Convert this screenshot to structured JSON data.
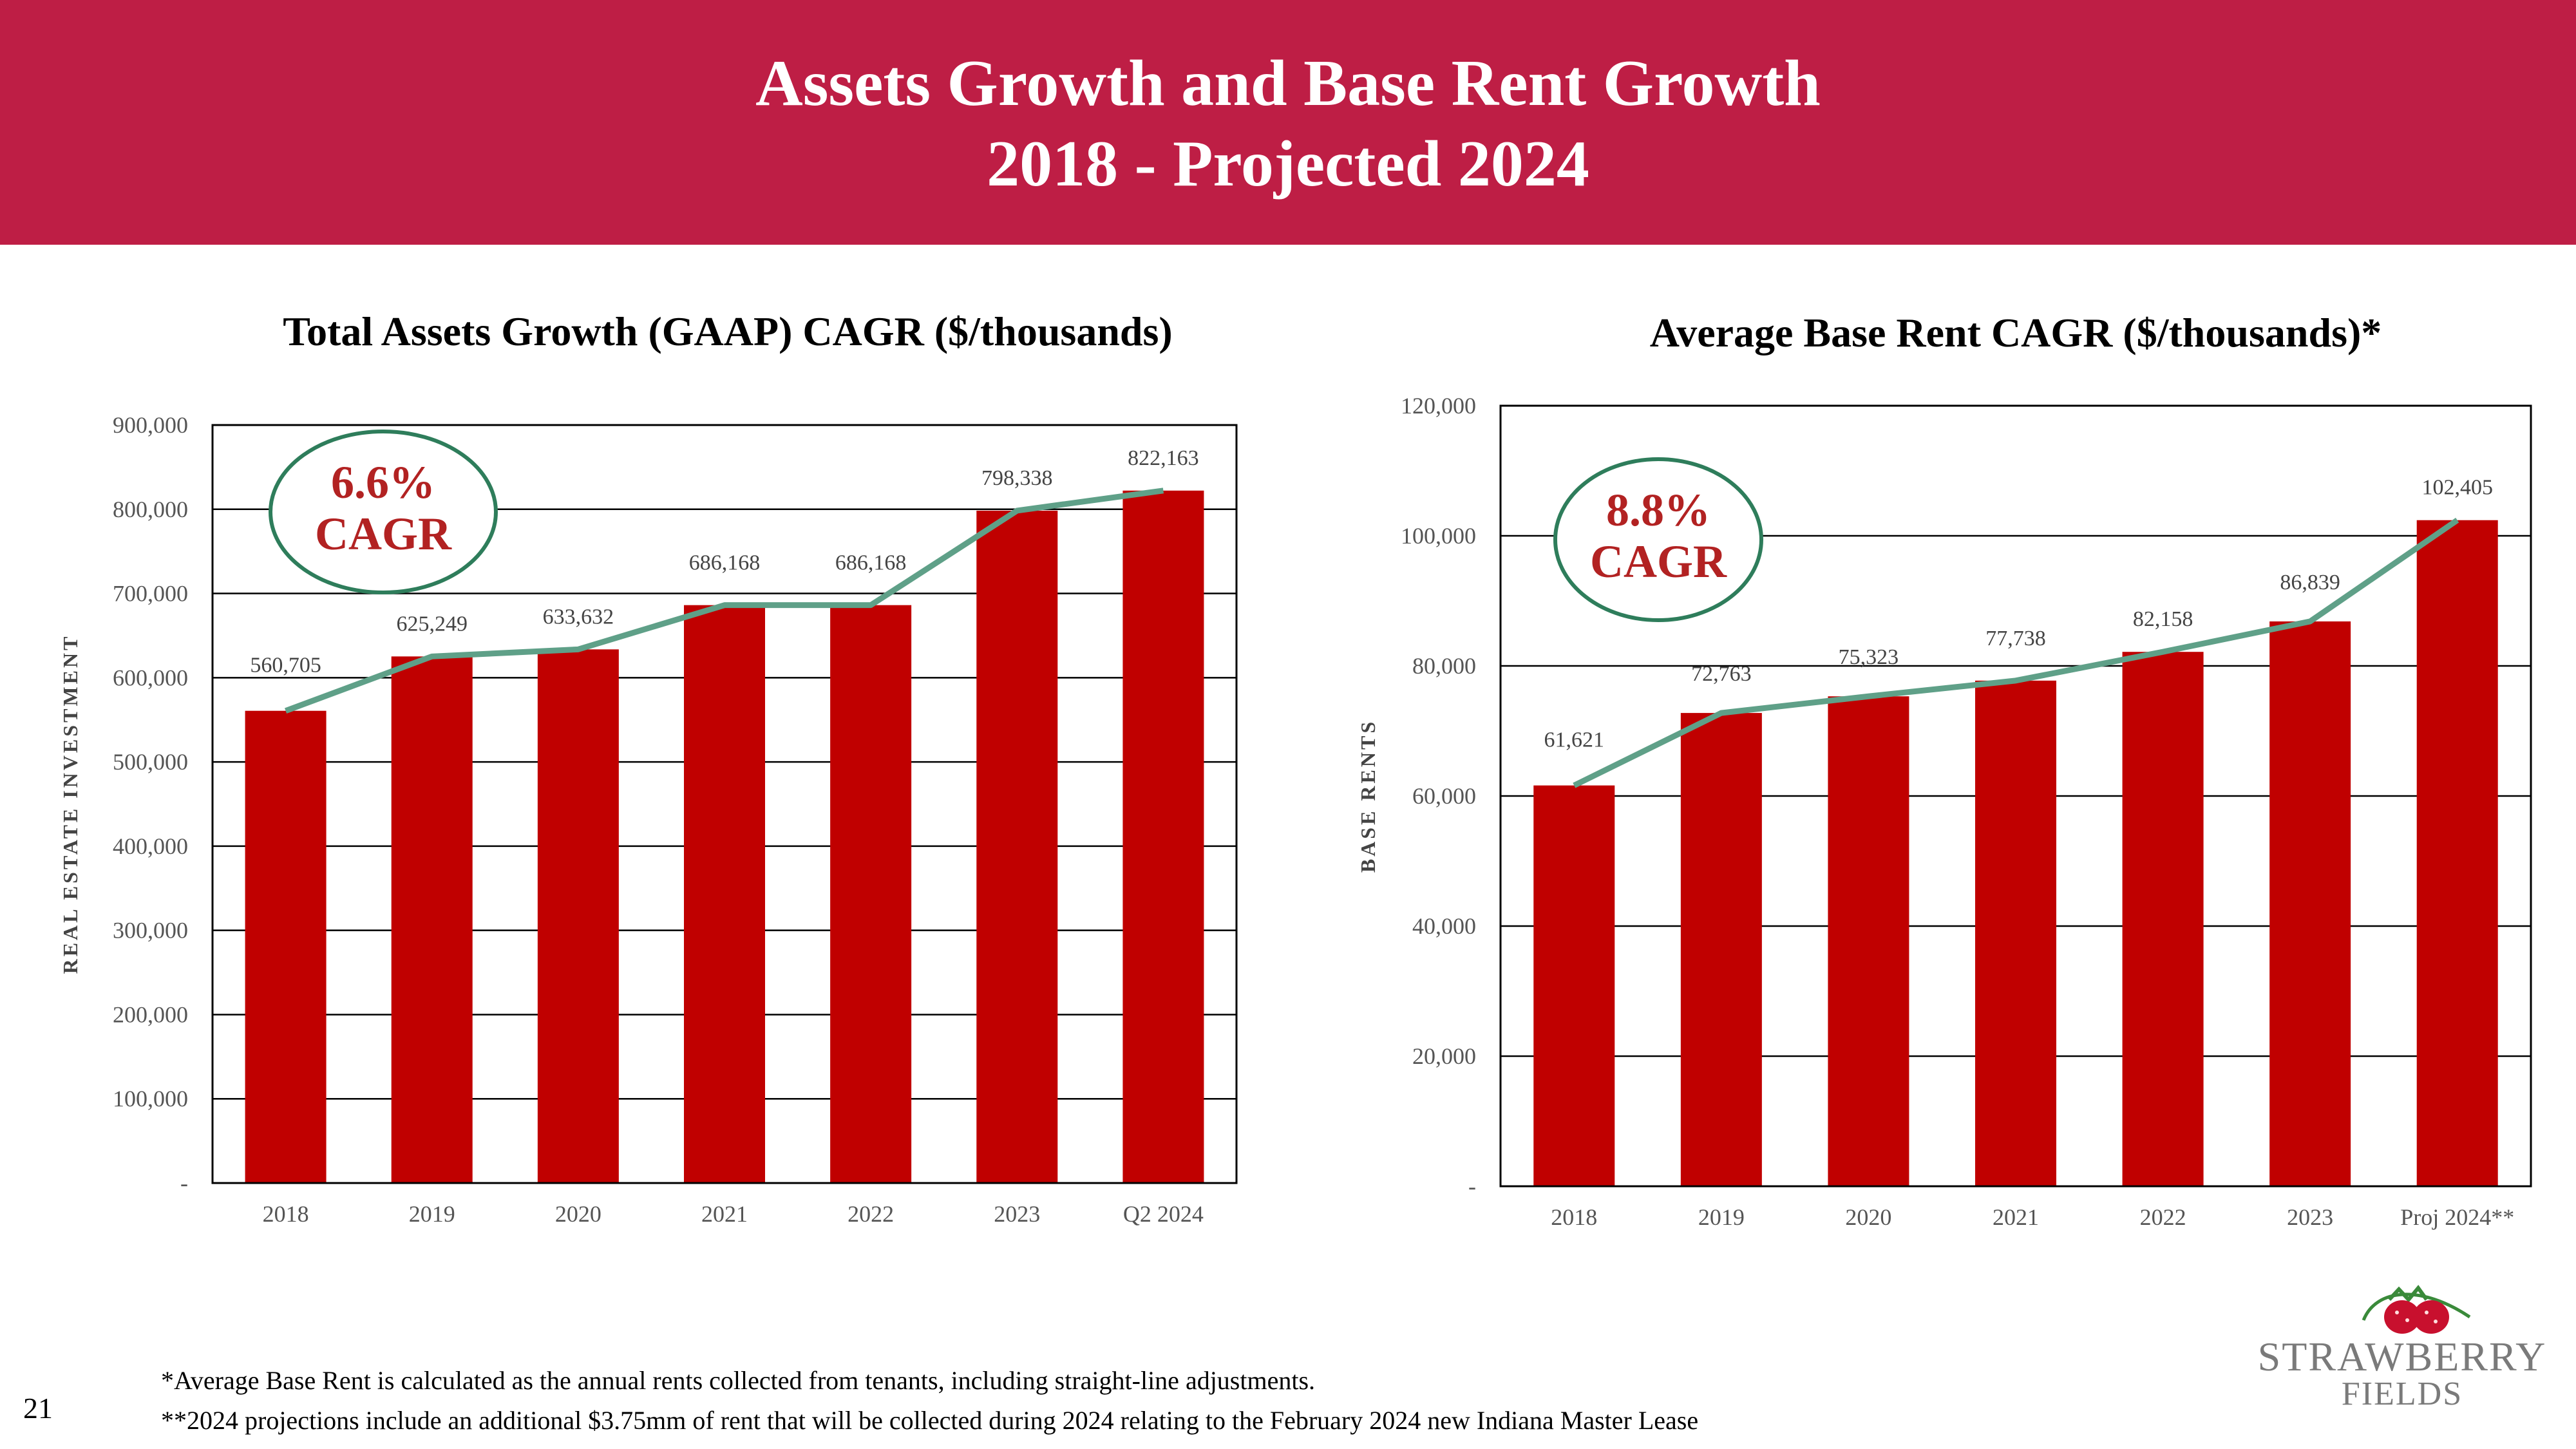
{
  "header": {
    "title_line1": "Assets Growth and Base Rent Growth",
    "title_line2": "2018 - Projected 2024"
  },
  "colors": {
    "banner": "#be1e45",
    "bar": "#c00000",
    "line": "#5fa088",
    "cagr_text": "#b22222",
    "cagr_ring": "#2e7d5b"
  },
  "chart_data": [
    {
      "type": "bar",
      "title": "Total Assets Growth (GAAP) CAGR ($/thousands)",
      "ylabel": "REAL ESTATE INVESTMENT",
      "xlabel": "",
      "categories": [
        "2018",
        "2019",
        "2020",
        "2021",
        "2022",
        "2023",
        "Q2 2024"
      ],
      "series": [
        {
          "name": "Total Assets (bar)",
          "values": [
            560705,
            625249,
            633632,
            686168,
            686168,
            798338,
            822163
          ]
        },
        {
          "name": "Trend (line)",
          "values": [
            560705,
            625249,
            633632,
            686168,
            686168,
            798338,
            822163
          ]
        }
      ],
      "data_labels": [
        "560,705",
        "625,249",
        "633,632",
        "686,168",
        "686,168",
        "798,338",
        "822,163"
      ],
      "ylim": [
        0,
        900000
      ],
      "yticks": [
        0,
        100000,
        200000,
        300000,
        400000,
        500000,
        600000,
        700000,
        800000,
        900000
      ],
      "ytick_labels": [
        "-",
        "100,000",
        "200,000",
        "300,000",
        "400,000",
        "500,000",
        "600,000",
        "700,000",
        "800,000",
        "900,000"
      ],
      "grid": true,
      "cagr": {
        "value": "6.6%",
        "label": "CAGR"
      }
    },
    {
      "type": "bar",
      "title": "Average Base Rent CAGR ($/thousands)*",
      "ylabel": "BASE RENTS",
      "xlabel": "",
      "categories": [
        "2018",
        "2019",
        "2020",
        "2021",
        "2022",
        "2023",
        "Proj 2024**"
      ],
      "series": [
        {
          "name": "Average Base Rent (bar)",
          "values": [
            61621,
            72763,
            75323,
            77738,
            82158,
            86839,
            102405
          ]
        },
        {
          "name": "Trend (line)",
          "values": [
            61621,
            72763,
            75323,
            77738,
            82158,
            86839,
            102405
          ]
        }
      ],
      "data_labels": [
        "61,621",
        "72,763",
        "75,323",
        "77,738",
        "82,158",
        "86,839",
        "102,405"
      ],
      "ylim": [
        0,
        120000
      ],
      "yticks": [
        0,
        20000,
        40000,
        60000,
        80000,
        100000,
        120000
      ],
      "ytick_labels": [
        "-",
        "20,000",
        "40,000",
        "60,000",
        "80,000",
        "100,000",
        "120,000"
      ],
      "grid": true,
      "cagr": {
        "value": "8.8%",
        "label": "CAGR"
      }
    }
  ],
  "footnotes": {
    "note1": "*Average Base Rent is calculated as the annual rents collected from tenants, including straight-line adjustments.",
    "note2": "**2024 projections include an additional $3.75mm of rent that will be collected during 2024 relating to the February 2024 new Indiana Master Lease"
  },
  "page_number": "21",
  "logo": {
    "line1": "STRAWBERRY",
    "line2": "FIELDS",
    "icon": "strawberry-icon"
  }
}
